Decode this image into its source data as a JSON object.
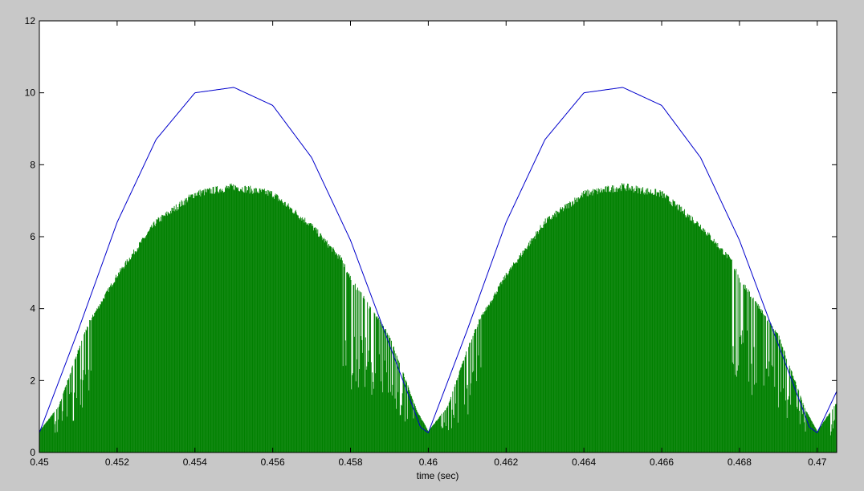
{
  "colors": {
    "figure_background": "#c8c8c8",
    "axes_background": "#ffffff",
    "axis_color": "#000000"
  },
  "chart_data": {
    "type": "line",
    "title": "",
    "xlabel": "time (sec)",
    "ylabel": "",
    "xlim": [
      0.45,
      0.4705
    ],
    "ylim": [
      0,
      12
    ],
    "grid": false,
    "legend": "none",
    "x_ticks": [
      0.45,
      0.452,
      0.454,
      0.456,
      0.458,
      0.46,
      0.462,
      0.464,
      0.466,
      0.468,
      0.47
    ],
    "x_tick_labels": [
      "0.45",
      "0.452",
      "0.454",
      "0.456",
      "0.458",
      "0.46",
      "0.462",
      "0.464",
      "0.466",
      "0.468",
      "0.47"
    ],
    "y_ticks": [
      0,
      2,
      4,
      6,
      8,
      10,
      12
    ],
    "y_tick_labels": [
      "0",
      "2",
      "4",
      "6",
      "8",
      "10",
      "12"
    ],
    "series": [
      {
        "color": "#0000cc",
        "style": "line",
        "description_shape": "rectified sine, period 0.01 s",
        "x": [
          0.45,
          0.451,
          0.452,
          0.453,
          0.454,
          0.455,
          0.456,
          0.457,
          0.458,
          0.459,
          0.4598,
          0.46,
          0.461,
          0.462,
          0.463,
          0.464,
          0.465,
          0.466,
          0.467,
          0.468,
          0.469,
          0.4698,
          0.47,
          0.4705
        ],
        "values": [
          0.55,
          3.4,
          6.4,
          8.7,
          10.0,
          10.15,
          9.65,
          8.2,
          5.9,
          3.0,
          0.7,
          0.55,
          3.4,
          6.4,
          8.7,
          10.0,
          10.15,
          9.65,
          8.2,
          5.9,
          3.0,
          0.7,
          0.55,
          1.7
        ]
      },
      {
        "color": "#008000",
        "style": "dense-switching-fill",
        "x": [
          0.45,
          0.4505,
          0.451,
          0.4513,
          0.452,
          0.453,
          0.454,
          0.455,
          0.456,
          0.457,
          0.4578,
          0.458,
          0.459,
          0.4597,
          0.46,
          0.4605,
          0.461,
          0.4613,
          0.462,
          0.463,
          0.464,
          0.465,
          0.466,
          0.467,
          0.4678,
          0.468,
          0.469,
          0.4697,
          0.47,
          0.4705
        ],
        "values": [
          0.6,
          1.3,
          2.9,
          3.7,
          5.0,
          6.5,
          7.3,
          7.5,
          7.3,
          6.4,
          5.4,
          4.9,
          3.3,
          1.2,
          0.6,
          1.3,
          2.9,
          3.7,
          5.0,
          6.5,
          7.3,
          7.5,
          7.3,
          6.4,
          5.4,
          4.9,
          3.3,
          1.2,
          0.6,
          1.4
        ]
      }
    ]
  }
}
